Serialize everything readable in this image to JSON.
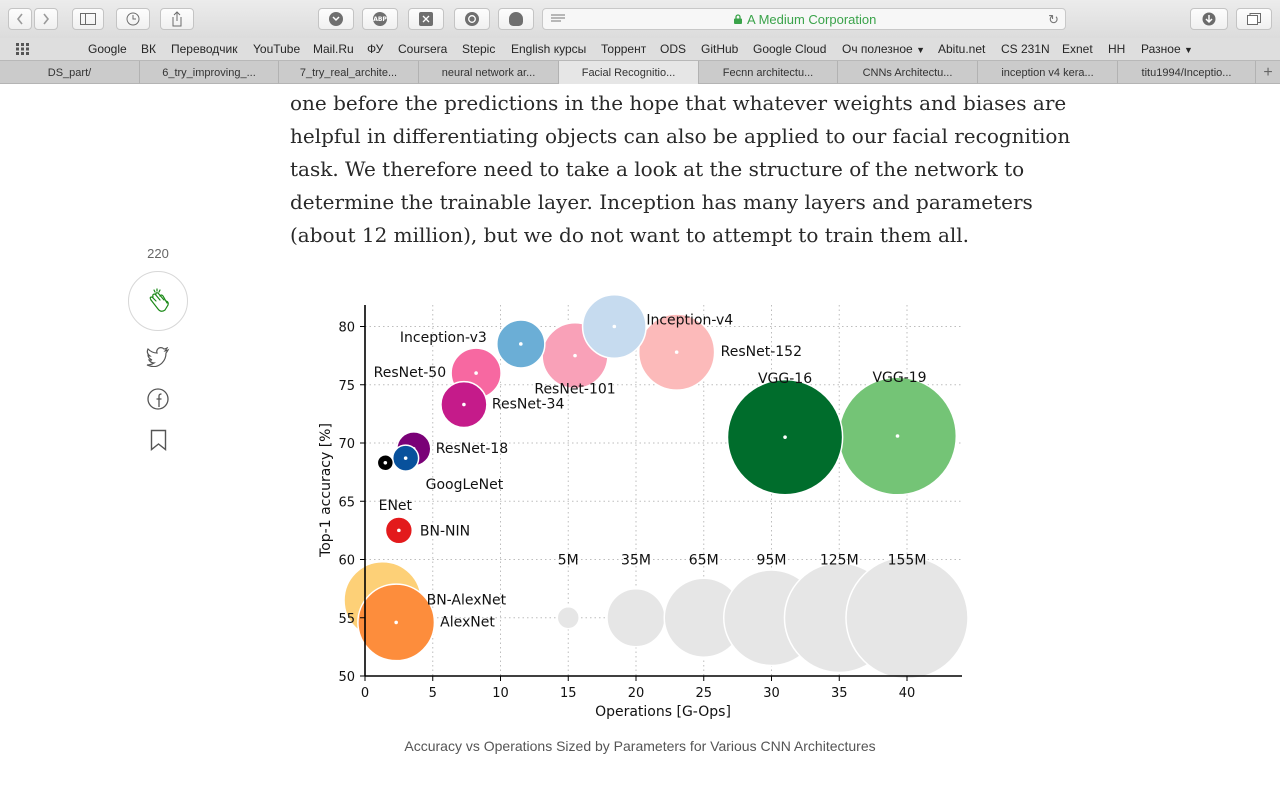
{
  "browser": {
    "site_label": "A Medium Corporation",
    "extensions": [
      {
        "name": "pocket-icon",
        "label": ""
      },
      {
        "name": "adblock-icon",
        "label": "ABP"
      },
      {
        "name": "scissor-icon",
        "label": ""
      },
      {
        "name": "sync-icon",
        "label": ""
      },
      {
        "name": "ghostery-icon",
        "label": ""
      }
    ]
  },
  "bookmarks": [
    "Google",
    "ВК",
    "Переводчик",
    "YouTube",
    "Mail.Ru",
    "ФУ",
    "Coursera",
    "Stepic",
    "English курсы",
    "Торрент",
    "ODS",
    "GitHub",
    "Google Cloud",
    "Оч полезное",
    "Abitu.net",
    "CS 231N",
    "Exnet",
    "HH",
    "Разное"
  ],
  "tabs": [
    {
      "label": "DS_part/",
      "active": false
    },
    {
      "label": "6_try_improving_...",
      "active": false
    },
    {
      "label": "7_try_real_archite...",
      "active": false
    },
    {
      "label": "neural network ar...",
      "active": false
    },
    {
      "label": "Facial Recognitio...",
      "active": true
    },
    {
      "label": "Fecnn architectu...",
      "active": false
    },
    {
      "label": "CNNs Architectu...",
      "active": false
    },
    {
      "label": "inception v4 kera...",
      "active": false
    },
    {
      "label": "titu1994/Inceptio...",
      "active": false
    }
  ],
  "article": {
    "lines": [
      "one before the predictions in the hope that whatever weights and biases are",
      "helpful in differentiating objects can also be applied to our facial recognition",
      "task. We therefore need to take a look at the structure of the network to",
      "determine the trainable layer. Inception has many layers and parameters",
      "(about 12 million), but we do not want to attempt to train them all."
    ],
    "caption": "Accuracy vs Operations Sized by Parameters for Various CNN Architectures"
  },
  "sidebar": {
    "clap_count": "220"
  },
  "chart_data": {
    "type": "scatter",
    "xlabel": "Operations [G-Ops]",
    "ylabel": "Top-1 accuracy [%]",
    "xlim": [
      0,
      44
    ],
    "ylim": [
      50,
      82
    ],
    "xticks": [
      0,
      5,
      10,
      15,
      20,
      25,
      30,
      35,
      40
    ],
    "yticks": [
      50,
      55,
      60,
      65,
      70,
      75,
      80
    ],
    "grid": true,
    "points": [
      {
        "label": "Inception-v4",
        "x": 18.4,
        "y": 80.0,
        "params_m": 42,
        "color": "#c6dbef"
      },
      {
        "label": "Inception-v3",
        "x": 11.5,
        "y": 78.5,
        "params_m": 24,
        "color": "#6baed6"
      },
      {
        "label": "ResNet-152",
        "x": 23.0,
        "y": 77.8,
        "params_m": 60,
        "color": "#fcbaba"
      },
      {
        "label": "ResNet-101",
        "x": 15.5,
        "y": 77.5,
        "params_m": 45,
        "color": "#f9a1b8"
      },
      {
        "label": "ResNet-50",
        "x": 8.2,
        "y": 76.0,
        "params_m": 26,
        "color": "#f768a1"
      },
      {
        "label": "ResNet-34",
        "x": 7.3,
        "y": 73.3,
        "params_m": 22,
        "color": "#c51b8a"
      },
      {
        "label": "ResNet-18",
        "x": 3.6,
        "y": 69.5,
        "params_m": 12,
        "color": "#7a0177"
      },
      {
        "label": "GoogLeNet",
        "x": 3.0,
        "y": 68.7,
        "params_m": 7,
        "color": "#08519c"
      },
      {
        "label": "ENet",
        "x": 1.5,
        "y": 68.3,
        "params_m": 1,
        "color": "#000000"
      },
      {
        "label": "BN-NIN",
        "x": 2.5,
        "y": 62.5,
        "params_m": 7.5,
        "color": "#e31a1c"
      },
      {
        "label": "VGG-16",
        "x": 31.0,
        "y": 70.5,
        "params_m": 138,
        "color": "#006d2c"
      },
      {
        "label": "VGG-19",
        "x": 39.3,
        "y": 70.6,
        "params_m": 144,
        "color": "#74c476"
      },
      {
        "label": "BN-AlexNet",
        "x": 1.3,
        "y": 56.5,
        "params_m": 62,
        "color": "#fdd077"
      },
      {
        "label": "AlexNet",
        "x": 2.3,
        "y": 54.6,
        "params_m": 61,
        "color": "#fd8d3c"
      }
    ],
    "size_legend": [
      {
        "label": "5M",
        "x": 15.0,
        "y": 55,
        "params_m": 5
      },
      {
        "label": "35M",
        "x": 20.0,
        "y": 55,
        "params_m": 35
      },
      {
        "label": "65M",
        "x": 25.0,
        "y": 55,
        "params_m": 65
      },
      {
        "label": "95M",
        "x": 30.0,
        "y": 55,
        "params_m": 95
      },
      {
        "label": "125M",
        "x": 35.0,
        "y": 55,
        "params_m": 125
      },
      {
        "label": "155M",
        "x": 40.0,
        "y": 55,
        "params_m": 155
      }
    ]
  }
}
